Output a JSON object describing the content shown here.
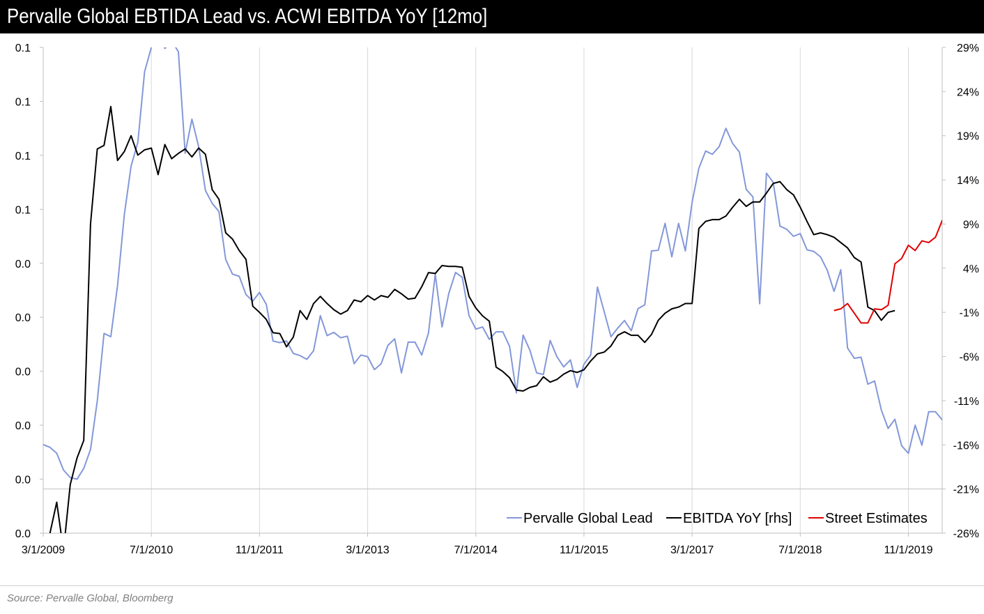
{
  "title": "Pervalle Global EBTIDA Lead vs. ACWI EBITDA YoY [12mo]",
  "source": "Source: Pervalle Global, Bloomberg",
  "colors": {
    "lead": "#8397d9",
    "ebitda": "#000000",
    "street": "#e00000",
    "gridline": "#d9d9d9",
    "axis": "#bfbfbf"
  },
  "chart_data": {
    "type": "line",
    "legend_position": "bottom-right",
    "grid": "vertical",
    "x_ticks": [
      "3/1/2009",
      "7/1/2010",
      "11/1/2011",
      "3/1/2013",
      "7/1/2014",
      "11/1/2015",
      "3/1/2017",
      "7/1/2018",
      "11/1/2019"
    ],
    "xlim": [
      "2009-03-01",
      "2020-04-01"
    ],
    "y_left": {
      "ylim": [
        0,
        0.09
      ],
      "ticks": [
        0,
        0.01,
        0.02,
        0.03,
        0.04,
        0.05,
        0.06,
        0.07,
        0.08,
        0.09
      ],
      "tick_labels": [
        "0.0",
        "0.0",
        "0.0",
        "0.0",
        "0.0",
        "0.0",
        "0.1",
        "0.1",
        "0.1",
        "0.1"
      ]
    },
    "y_right": {
      "ylim": [
        -26,
        29
      ],
      "ticks": [
        -26,
        -21,
        -16,
        -11,
        -6,
        -1,
        4,
        9,
        14,
        19,
        24,
        29
      ],
      "tick_labels": [
        "-26%",
        "-21%",
        "-16%",
        "-11%",
        "-6%",
        "-1%",
        "4%",
        "9%",
        "14%",
        "19%",
        "24%",
        "29%"
      ]
    },
    "series": [
      {
        "name": "Pervalle Global Lead",
        "axis": "left",
        "x_start": "2009-03-01",
        "x_step_months": 1,
        "values": [
          0.0164,
          0.0159,
          0.0148,
          0.0117,
          0.0103,
          0.01,
          0.012,
          0.0155,
          0.0245,
          0.037,
          0.0364,
          0.0459,
          0.059,
          0.068,
          0.0724,
          0.0855,
          0.09,
          0.0935,
          0.0898,
          0.0912,
          0.0892,
          0.0704,
          0.0767,
          0.0716,
          0.0635,
          0.0611,
          0.0596,
          0.0507,
          0.048,
          0.0476,
          0.0442,
          0.043,
          0.0446,
          0.0424,
          0.0356,
          0.0353,
          0.0356,
          0.0333,
          0.0329,
          0.0322,
          0.0338,
          0.0403,
          0.0366,
          0.0372,
          0.0362,
          0.0365,
          0.0314,
          0.033,
          0.0327,
          0.0303,
          0.0314,
          0.0348,
          0.036,
          0.0297,
          0.0354,
          0.0354,
          0.033,
          0.0371,
          0.048,
          0.0382,
          0.0444,
          0.0483,
          0.0474,
          0.0403,
          0.0378,
          0.0382,
          0.0359,
          0.0373,
          0.0373,
          0.0346,
          0.026,
          0.0367,
          0.0339,
          0.0297,
          0.0294,
          0.0357,
          0.0327,
          0.0308,
          0.0321,
          0.027,
          0.0313,
          0.033,
          0.0456,
          0.041,
          0.0364,
          0.038,
          0.0394,
          0.0375,
          0.0416,
          0.0423,
          0.0523,
          0.0524,
          0.0574,
          0.0512,
          0.0574,
          0.0523,
          0.0613,
          0.0676,
          0.0708,
          0.0702,
          0.0716,
          0.075,
          0.0722,
          0.0706,
          0.0637,
          0.0623,
          0.0425,
          0.0667,
          0.065,
          0.0569,
          0.0563,
          0.055,
          0.0555,
          0.0525,
          0.0522,
          0.0512,
          0.0487,
          0.0448,
          0.0488,
          0.0343,
          0.0324,
          0.0326,
          0.0276,
          0.0282,
          0.0228,
          0.0194,
          0.0211,
          0.0162,
          0.0148,
          0.02,
          0.0163,
          0.0225,
          0.0225,
          0.021,
          0.0238,
          0.0257,
          0.0248
        ]
      },
      {
        "name": "EBITDA YoY [rhs]",
        "axis": "right",
        "x_start": "2009-03-01",
        "x_step_months": 1,
        "values": [
          -30.0,
          -26.0,
          -22.5,
          -28.0,
          -20.5,
          -17.5,
          -15.5,
          9.0,
          17.5,
          17.9,
          22.3,
          16.2,
          17.2,
          19.0,
          16.8,
          17.4,
          17.6,
          14.6,
          18.0,
          16.4,
          17.0,
          17.5,
          16.6,
          17.6,
          16.9,
          12.9,
          11.8,
          8.0,
          7.3,
          6.0,
          5.0,
          -0.3,
          -1.0,
          -1.8,
          -3.3,
          -3.4,
          -4.9,
          -3.8,
          -0.8,
          -1.8,
          0.0,
          0.8,
          0.0,
          -0.7,
          -1.2,
          -0.8,
          0.4,
          0.2,
          0.9,
          0.4,
          0.9,
          0.7,
          1.6,
          1.1,
          0.5,
          0.6,
          1.9,
          3.5,
          3.4,
          4.3,
          4.2,
          4.2,
          4.1,
          0.8,
          -0.5,
          -1.4,
          -2.0,
          -7.2,
          -7.7,
          -8.4,
          -9.8,
          -9.9,
          -9.5,
          -9.3,
          -8.3,
          -8.9,
          -8.6,
          -8.0,
          -7.6,
          -7.8,
          -7.5,
          -6.5,
          -5.7,
          -5.5,
          -4.8,
          -3.6,
          -3.2,
          -3.6,
          -3.6,
          -4.4,
          -3.5,
          -1.9,
          -1.1,
          -0.6,
          -0.4,
          0.0,
          0.0,
          8.5,
          9.3,
          9.5,
          9.5,
          9.9,
          10.9,
          11.8,
          11.0,
          11.5,
          11.5,
          12.5,
          13.6,
          13.8,
          12.9,
          12.3,
          10.9,
          9.3,
          7.8,
          8.0,
          7.8,
          7.5,
          6.9,
          6.3,
          5.2,
          4.7,
          -0.4,
          -0.8,
          -1.9,
          -1.0,
          -0.8
        ],
        "estimate_values": [
          -0.8,
          -0.6,
          0.0,
          -1.1,
          -2.2,
          -2.2,
          -0.6,
          -0.7,
          -0.2,
          4.5,
          5.1,
          6.6,
          6.0,
          7.1,
          6.9,
          7.5,
          9.4,
          9.4,
          8.8
        ]
      },
      {
        "name": "Street Estimates",
        "axis": "right",
        "x_start": "2018-12-01",
        "x_step_months": 1
      }
    ]
  }
}
